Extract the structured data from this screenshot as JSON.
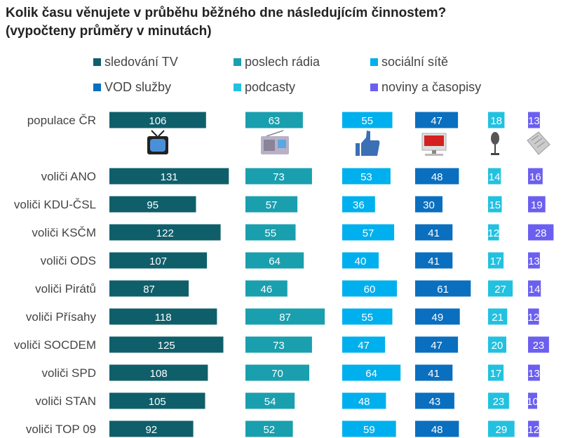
{
  "chart_data": {
    "type": "bar",
    "title": "Kolik času věnujete v průběhu běžného dne následujícím činnostem?",
    "subtitle": "(vypočteny průměry v minutách)",
    "categories": [
      "populace ČR",
      "voliči ANO",
      "voliči KDU-ČSL",
      "voliči KSČM",
      "voliči ODS",
      "voliči Pirátů",
      "voliči Přísahy",
      "voliči SOCDEM",
      "voliči SPD",
      "voliči STAN",
      "voliči TOP 09"
    ],
    "series": [
      {
        "name": "sledování TV",
        "color": "#0f5f6b",
        "icon": "tv-icon",
        "values": [
          106,
          131,
          95,
          122,
          107,
          87,
          118,
          125,
          108,
          105,
          92
        ]
      },
      {
        "name": "poslech rádia",
        "color": "#1a9fae",
        "icon": "radio-icon",
        "values": [
          63,
          73,
          57,
          55,
          64,
          46,
          87,
          73,
          70,
          54,
          52
        ]
      },
      {
        "name": "sociální sítě",
        "color": "#00b0ee",
        "icon": "thumbs-up-icon",
        "values": [
          55,
          53,
          36,
          57,
          40,
          60,
          55,
          47,
          64,
          48,
          59
        ]
      },
      {
        "name": "VOD služby",
        "color": "#0a6fbf",
        "icon": "computer-icon",
        "values": [
          47,
          48,
          30,
          41,
          41,
          61,
          49,
          47,
          41,
          43,
          48
        ]
      },
      {
        "name": "podcasty",
        "color": "#22c1e0",
        "icon": "microphone-icon",
        "values": [
          18,
          14,
          15,
          12,
          17,
          27,
          21,
          20,
          17,
          23,
          29
        ]
      },
      {
        "name": "noviny a časopisy",
        "color": "#6b5ff0",
        "icon": "newspaper-icon",
        "values": [
          13,
          16,
          19,
          28,
          13,
          14,
          12,
          23,
          13,
          10,
          12
        ]
      }
    ],
    "legend": "top",
    "data_labels": true,
    "grid": false
  }
}
